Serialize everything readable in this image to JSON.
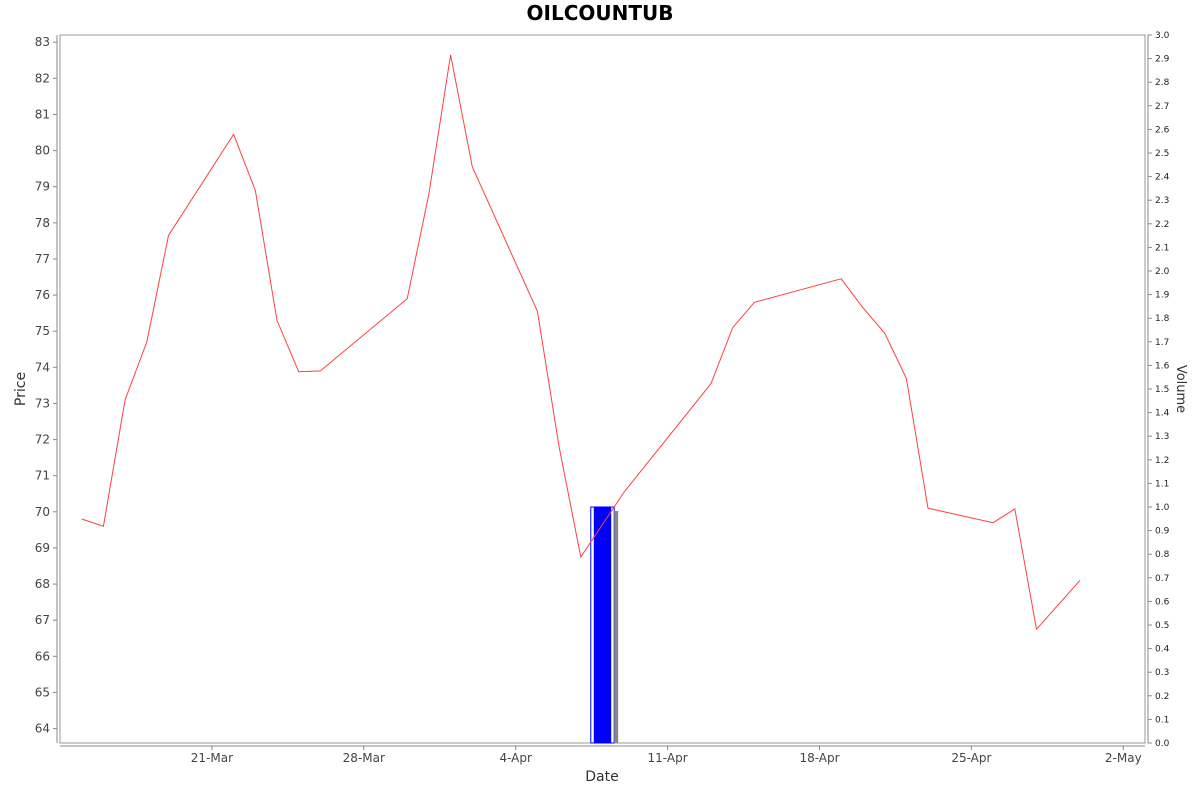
{
  "chart_data": {
    "type": "line",
    "title": "OILCOUNTUB",
    "xlabel": "Date",
    "ylabel": "Price",
    "y2label": "Volume",
    "ylim": [
      63.6,
      83.2
    ],
    "y2lim": [
      0.0,
      3.0
    ],
    "xlim": [
      "2022-03-14",
      "2022-05-03"
    ],
    "yticks": [
      64,
      65,
      66,
      67,
      68,
      69,
      70,
      71,
      72,
      73,
      74,
      75,
      76,
      77,
      78,
      79,
      80,
      81,
      82,
      83
    ],
    "y2ticks": [
      "0.0",
      "0.1",
      "0.2",
      "0.3",
      "0.4",
      "0.5",
      "0.6",
      "0.7",
      "0.8",
      "0.9",
      "1.0",
      "1.1",
      "1.2",
      "1.3",
      "1.4",
      "1.5",
      "1.6",
      "1.7",
      "1.8",
      "1.9",
      "2.0",
      "2.1",
      "2.2",
      "2.3",
      "2.4",
      "2.5",
      "2.6",
      "2.7",
      "2.8",
      "2.9",
      "3.0"
    ],
    "xticks": [
      {
        "label": "21-Mar",
        "date": "2022-03-21"
      },
      {
        "label": "28-Mar",
        "date": "2022-03-28"
      },
      {
        "label": "4-Apr",
        "date": "2022-04-04"
      },
      {
        "label": "11-Apr",
        "date": "2022-04-11"
      },
      {
        "label": "18-Apr",
        "date": "2022-04-18"
      },
      {
        "label": "25-Apr",
        "date": "2022-04-25"
      },
      {
        "label": "2-May",
        "date": "2022-05-02"
      }
    ],
    "grid": false,
    "series": [
      {
        "type": "line",
        "color": "#ff4040",
        "points": [
          {
            "x": "2022-03-15",
            "y": 69.8
          },
          {
            "x": "2022-03-16",
            "y": 69.6
          },
          {
            "x": "2022-03-17",
            "y": 73.1
          },
          {
            "x": "2022-03-18",
            "y": 74.7
          },
          {
            "x": "2022-03-19",
            "y": 77.65
          },
          {
            "x": "2022-03-22",
            "y": 80.45
          },
          {
            "x": "2022-03-23",
            "y": 78.9
          },
          {
            "x": "2022-03-24",
            "y": 75.3
          },
          {
            "x": "2022-03-25",
            "y": 73.88
          },
          {
            "x": "2022-03-26",
            "y": 73.9
          },
          {
            "x": "2022-03-30",
            "y": 75.9
          },
          {
            "x": "2022-03-31",
            "y": 78.8
          },
          {
            "x": "2022-04-01",
            "y": 82.65
          },
          {
            "x": "2022-04-02",
            "y": 79.55
          },
          {
            "x": "2022-04-05",
            "y": 75.55
          },
          {
            "x": "2022-04-06",
            "y": 71.8
          },
          {
            "x": "2022-04-07",
            "y": 68.75
          },
          {
            "x": "2022-04-09",
            "y": 70.55
          },
          {
            "x": "2022-04-13",
            "y": 73.55
          },
          {
            "x": "2022-04-14",
            "y": 75.1
          },
          {
            "x": "2022-04-15",
            "y": 75.8
          },
          {
            "x": "2022-04-19",
            "y": 76.45
          },
          {
            "x": "2022-04-20",
            "y": 75.65
          },
          {
            "x": "2022-04-21",
            "y": 74.95
          },
          {
            "x": "2022-04-22",
            "y": 73.7
          },
          {
            "x": "2022-04-23",
            "y": 70.1
          },
          {
            "x": "2022-04-26",
            "y": 69.7
          },
          {
            "x": "2022-04-27",
            "y": 70.08
          },
          {
            "x": "2022-04-28",
            "y": 66.75
          },
          {
            "x": "2022-04-30",
            "y": 68.1
          }
        ]
      },
      {
        "type": "bar",
        "axis": "y2",
        "color": "#0000ff",
        "points": [
          {
            "x": "2022-04-08",
            "y": 1.0
          }
        ]
      }
    ]
  }
}
